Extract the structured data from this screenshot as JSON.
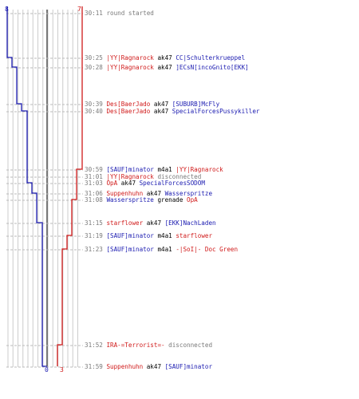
{
  "colors": {
    "blue_team": "#1a1ab0",
    "red_team": "#d01a1a",
    "grid": "#cccccc",
    "dashes": "#bbbbbb",
    "center": "#777777"
  },
  "scores": {
    "blue_start": "8",
    "red_start": "7",
    "blue_end": "0",
    "red_end": "3"
  },
  "events": [
    {
      "time": "30:11",
      "parts": [
        {
          "text": "round started",
          "team": "msg"
        }
      ]
    },
    {
      "time": "30:25",
      "parts": [
        {
          "text": "|YY|Ragnarock",
          "team": "red"
        },
        {
          "text": " ak47 ",
          "team": "neutral"
        },
        {
          "text": "CC|Schulterkrueppel",
          "team": "blue"
        }
      ]
    },
    {
      "time": "30:28",
      "parts": [
        {
          "text": "|YY|Ragnarock",
          "team": "red"
        },
        {
          "text": " ak47 ",
          "team": "neutral"
        },
        {
          "text": "]ECsN[incoGnito[EKK]",
          "team": "blue"
        }
      ]
    },
    {
      "time": "30:39",
      "parts": [
        {
          "text": "Des[BaerJado",
          "team": "red"
        },
        {
          "text": " ak47 ",
          "team": "neutral"
        },
        {
          "text": "[SUBURB]McFly",
          "team": "blue"
        }
      ]
    },
    {
      "time": "30:40",
      "parts": [
        {
          "text": "Des[BaerJado",
          "team": "red"
        },
        {
          "text": " ak47 ",
          "team": "neutral"
        },
        {
          "text": "SpecialForcesPussykiller",
          "team": "blue"
        }
      ]
    },
    {
      "time": "30:59",
      "parts": [
        {
          "text": "[SAUF]minator",
          "team": "blue"
        },
        {
          "text": " m4a1 ",
          "team": "neutral"
        },
        {
          "text": "|YY|Ragnarock",
          "team": "red"
        }
      ]
    },
    {
      "time": "31:01",
      "parts": [
        {
          "text": "|YY|Ragnarock",
          "team": "red"
        },
        {
          "text": " disconnected",
          "team": "msg"
        }
      ]
    },
    {
      "time": "31:03",
      "parts": [
        {
          "text": "OpA",
          "team": "red"
        },
        {
          "text": " ak47 ",
          "team": "neutral"
        },
        {
          "text": "SpecialForcesSODOM",
          "team": "blue"
        }
      ]
    },
    {
      "time": "31:06",
      "parts": [
        {
          "text": "Suppenhuhn",
          "team": "red"
        },
        {
          "text": " ak47 ",
          "team": "neutral"
        },
        {
          "text": "Wasserspritze",
          "team": "blue"
        }
      ]
    },
    {
      "time": "31:08",
      "parts": [
        {
          "text": "Wasserspritze",
          "team": "blue"
        },
        {
          "text": " grenade ",
          "team": "neutral"
        },
        {
          "text": "OpA",
          "team": "red"
        }
      ]
    },
    {
      "time": "31:15",
      "parts": [
        {
          "text": "starflower",
          "team": "red"
        },
        {
          "text": " ak47 ",
          "team": "neutral"
        },
        {
          "text": "[EKK]NachLaden",
          "team": "blue"
        }
      ]
    },
    {
      "time": "31:19",
      "parts": [
        {
          "text": "[SAUF]minator",
          "team": "blue"
        },
        {
          "text": " m4a1 ",
          "team": "neutral"
        },
        {
          "text": "starflower",
          "team": "red"
        }
      ]
    },
    {
      "time": "31:23",
      "parts": [
        {
          "text": "[SAUF]minator",
          "team": "blue"
        },
        {
          "text": " m4a1 ",
          "team": "neutral"
        },
        {
          "text": "-|SoI|- Doc Green",
          "team": "red"
        }
      ]
    },
    {
      "time": "31:52",
      "parts": [
        {
          "text": "IRA-=Terrorist=-",
          "team": "red"
        },
        {
          "text": " disconnected",
          "team": "msg"
        }
      ]
    },
    {
      "time": "31:59",
      "parts": [
        {
          "text": "Suppenhuhn",
          "team": "red"
        },
        {
          "text": " ak47 ",
          "team": "neutral"
        },
        {
          "text": "[SAUF]minator",
          "team": "blue"
        }
      ]
    }
  ]
}
